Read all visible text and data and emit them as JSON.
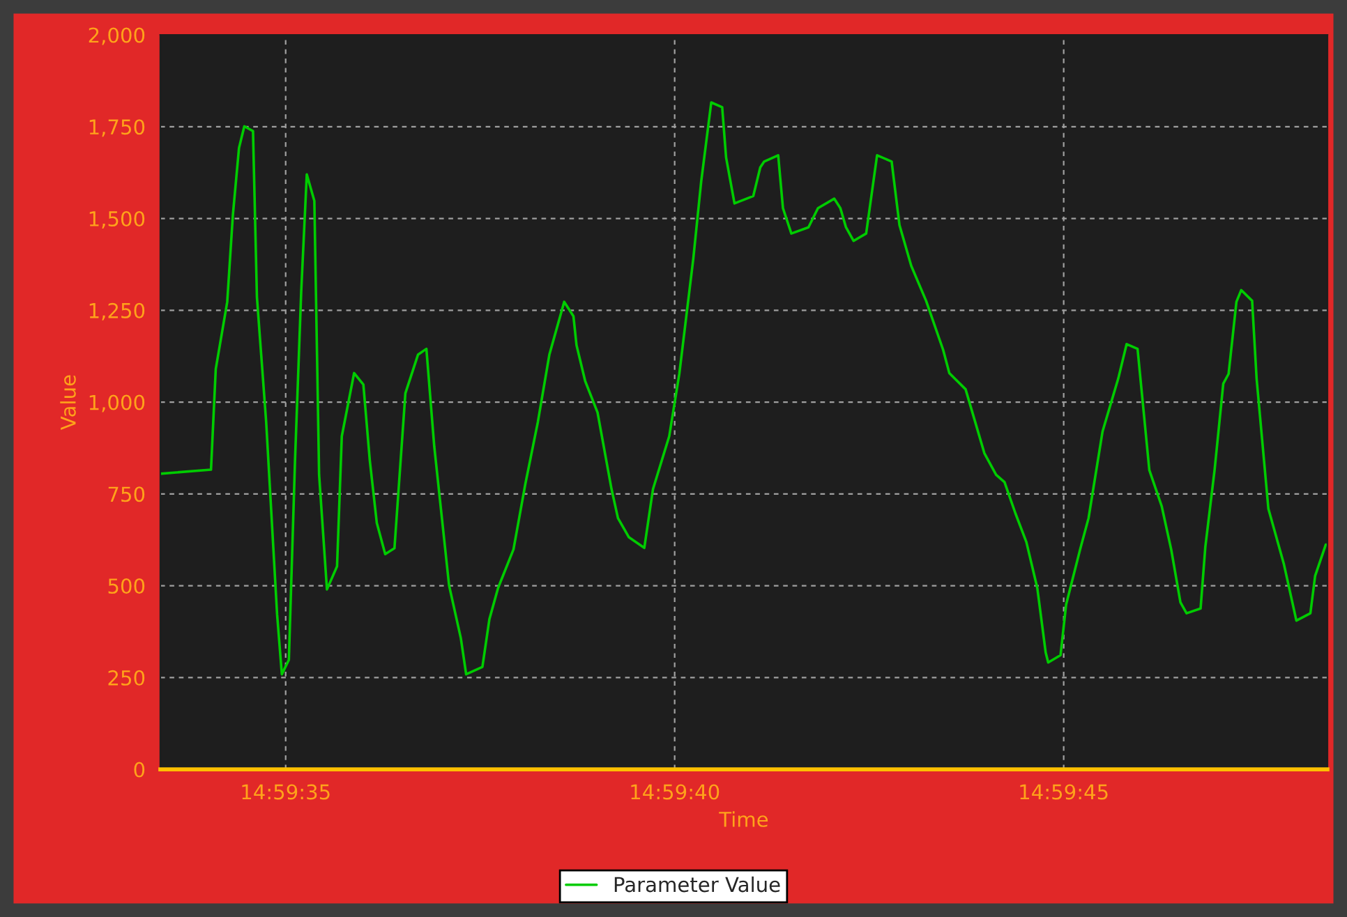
{
  "chart_data": {
    "type": "line",
    "xlabel": "Time",
    "ylabel": "Value",
    "x": [
      14.992608,
      14.992789,
      14.992806,
      14.992847,
      14.992867,
      14.992889,
      14.992908,
      14.992939,
      14.992953,
      14.992986,
      14.993025,
      14.993042,
      14.993067,
      14.993089,
      14.993111,
      14.993131,
      14.993158,
      14.993175,
      14.993203,
      14.993239,
      14.993256,
      14.9933,
      14.993333,
      14.993356,
      14.993381,
      14.993411,
      14.993444,
      14.993483,
      14.993528,
      14.993558,
      14.993586,
      14.993639,
      14.993681,
      14.9937,
      14.993758,
      14.993783,
      14.993814,
      14.993869,
      14.993911,
      14.993956,
      14.993997,
      14.99405,
      14.994083,
      14.994094,
      14.994125,
      14.994169,
      14.994219,
      14.994242,
      14.994281,
      14.994336,
      14.994367,
      14.994425,
      14.994461,
      14.994486,
      14.994511,
      14.994539,
      14.994575,
      14.994614,
      14.994628,
      14.994658,
      14.994725,
      14.99475,
      14.994764,
      14.994814,
      14.994831,
      14.994861,
      14.994922,
      14.994956,
      14.995014,
      14.995036,
      14.995056,
      14.995083,
      14.995128,
      14.995167,
      14.995219,
      14.995247,
      14.995289,
      14.995342,
      14.995403,
      14.995425,
      14.995483,
      14.99555,
      14.995592,
      14.995622,
      14.995661,
      14.9957,
      14.995739,
      14.995769,
      14.995778,
      14.995822,
      14.995842,
      14.995892,
      14.995922,
      14.995972,
      14.996028,
      14.996058,
      14.996097,
      14.996139,
      14.996183,
      14.996217,
      14.99625,
      14.996272,
      14.996322,
      14.996339,
      14.996372,
      14.996403,
      14.996422,
      14.99645,
      14.996467,
      14.996506,
      14.996522,
      14.996564,
      14.996619,
      14.996664,
      14.996714,
      14.996731,
      14.996769
    ],
    "series": [
      {
        "name": "Parameter Value",
        "color": "#00cc00",
        "values": [
          805,
          816,
          1090,
          1273,
          1508,
          1692,
          1751,
          1738,
          1286,
          946,
          422,
          259,
          298,
          841,
          1299,
          1620,
          1548,
          802,
          490,
          553,
          907,
          1079,
          1048,
          841,
          671,
          586,
          602,
          1024,
          1129,
          1145,
          880,
          501,
          357,
          259,
          279,
          409,
          494,
          599,
          776,
          946,
          1129,
          1273,
          1234,
          1155,
          1057,
          972,
          763,
          684,
          632,
          603,
          763,
          907,
          1077,
          1234,
          1391,
          1600,
          1816,
          1803,
          1666,
          1541,
          1561,
          1639,
          1655,
          1672,
          1528,
          1459,
          1476,
          1528,
          1554,
          1528,
          1476,
          1439,
          1459,
          1672,
          1655,
          1482,
          1371,
          1276,
          1142,
          1079,
          1035,
          861,
          802,
          782,
          697,
          619,
          494,
          318,
          291,
          311,
          449,
          599,
          684,
          920,
          1064,
          1158,
          1145,
          815,
          717,
          599,
          455,
          425,
          438,
          606,
          815,
          1050,
          1077,
          1273,
          1305,
          1276,
          1064,
          710,
          560,
          405,
          425,
          527,
          612
        ]
      }
    ],
    "xlim": [
      14.992608,
      14.996775
    ],
    "xticks": [
      {
        "value": 14.9930556,
        "label": "14:59:35"
      },
      {
        "value": 14.9944444,
        "label": "14:59:40"
      },
      {
        "value": 14.9958333,
        "label": "14:59:45"
      }
    ],
    "ylim": [
      0,
      2000
    ],
    "yticks": [
      0,
      250,
      500,
      750,
      {
        "value": 1000,
        "label": "1,000"
      },
      {
        "value": 1250,
        "label": "1,250"
      },
      {
        "value": 1500,
        "label": "1,500"
      },
      {
        "value": 1750,
        "label": "1,750"
      },
      {
        "value": 2000,
        "label": "2,000"
      }
    ],
    "grid": true,
    "legend": "bottom",
    "line_style": "solid"
  }
}
